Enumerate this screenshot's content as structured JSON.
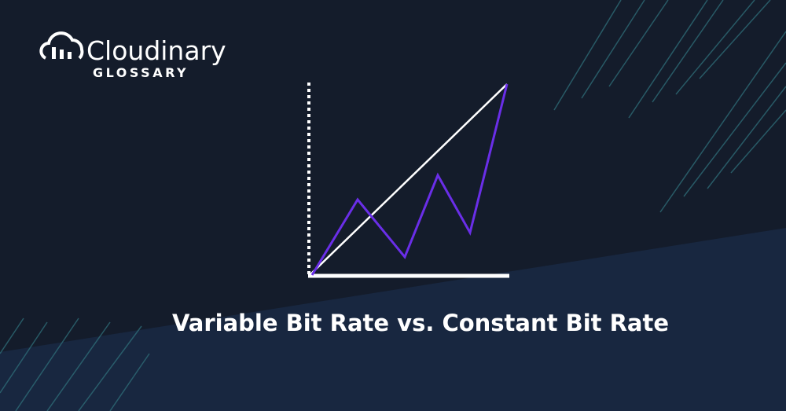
{
  "logo": {
    "name": "Cloudinary",
    "subtitle": "GLOSSARY"
  },
  "title": "Variable Bit Rate vs. Constant Bit Rate"
}
